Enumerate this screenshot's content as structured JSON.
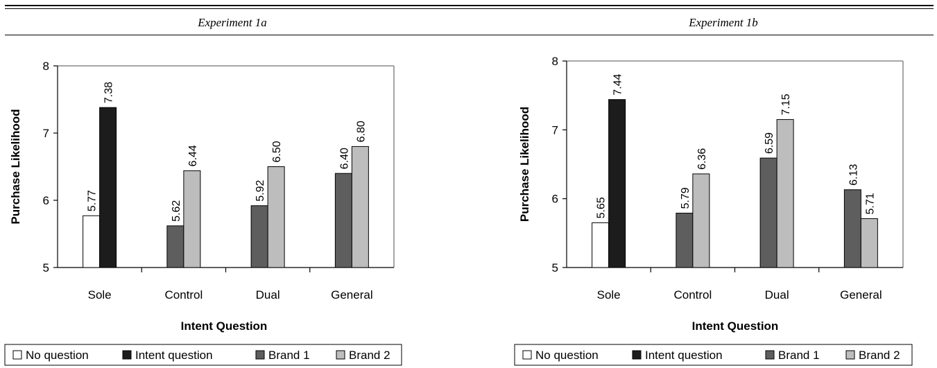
{
  "chart_data": [
    {
      "type": "bar",
      "title": "Experiment 1a",
      "xlabel": "Intent Question",
      "ylabel": "Purchase Likelihood",
      "ylim": [
        5,
        8
      ],
      "yticks": [
        "5",
        "6",
        "7",
        "8"
      ],
      "categories": [
        "Sole",
        "Control",
        "Dual",
        "General"
      ],
      "series": [
        {
          "name": "No question",
          "values": [
            5.77,
            null,
            null,
            null
          ],
          "labels": [
            "5.77",
            "",
            "",
            ""
          ],
          "color": "#ffffff"
        },
        {
          "name": "Intent question",
          "values": [
            7.38,
            null,
            null,
            null
          ],
          "labels": [
            "7.38",
            "",
            "",
            ""
          ],
          "color": "#1c1c1c"
        },
        {
          "name": "Brand 1",
          "values": [
            null,
            5.62,
            5.92,
            6.4
          ],
          "labels": [
            "",
            "5.62",
            "5.92",
            "6.40"
          ],
          "color": "#5e5e5e"
        },
        {
          "name": "Brand 2",
          "values": [
            null,
            6.44,
            6.5,
            6.8
          ],
          "labels": [
            "",
            "6.44",
            "6.50",
            "6.80"
          ],
          "color": "#bdbdbd"
        }
      ]
    },
    {
      "type": "bar",
      "title": "Experiment 1b",
      "xlabel": "Intent Question",
      "ylabel": "Purchase Likelihood",
      "ylim": [
        5,
        8
      ],
      "yticks": [
        "5",
        "6",
        "7",
        "8"
      ],
      "categories": [
        "Sole",
        "Control",
        "Dual",
        "General"
      ],
      "series": [
        {
          "name": "No question",
          "values": [
            5.65,
            null,
            null,
            null
          ],
          "labels": [
            "5.65",
            "",
            "",
            ""
          ],
          "color": "#ffffff"
        },
        {
          "name": "Intent question",
          "values": [
            7.44,
            null,
            null,
            null
          ],
          "labels": [
            "7.44",
            "",
            "",
            ""
          ],
          "color": "#1c1c1c"
        },
        {
          "name": "Brand 1",
          "values": [
            null,
            5.79,
            6.59,
            6.13
          ],
          "labels": [
            "",
            "5.79",
            "6.59",
            "6.13"
          ],
          "color": "#5e5e5e"
        },
        {
          "name": "Brand 2",
          "values": [
            null,
            6.36,
            7.15,
            5.71
          ],
          "labels": [
            "",
            "6.36",
            "7.15",
            "5.71"
          ],
          "color": "#bdbdbd"
        }
      ]
    }
  ]
}
